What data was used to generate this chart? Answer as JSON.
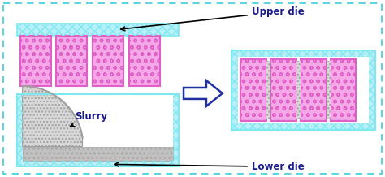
{
  "fig_width": 4.74,
  "fig_height": 2.18,
  "dpi": 100,
  "bg_color": "#ffffff",
  "outer_border_color": "#5dd5e0",
  "cyan_color": "#7ee8f0",
  "cyan_fill": "#b8f0f8",
  "pink_edge": "#e060c8",
  "pink_fill": "#f4a8e8",
  "gray_light": "#d8d8d8",
  "gray_mid": "#c0c0c0",
  "gray_dark": "#a0a0a0",
  "arrow_col": "#2030a0",
  "text_col": "#1a1a8c",
  "label_upper_die": "Upper die",
  "label_lower_die": "Lower die",
  "label_slurry": "Slurry"
}
